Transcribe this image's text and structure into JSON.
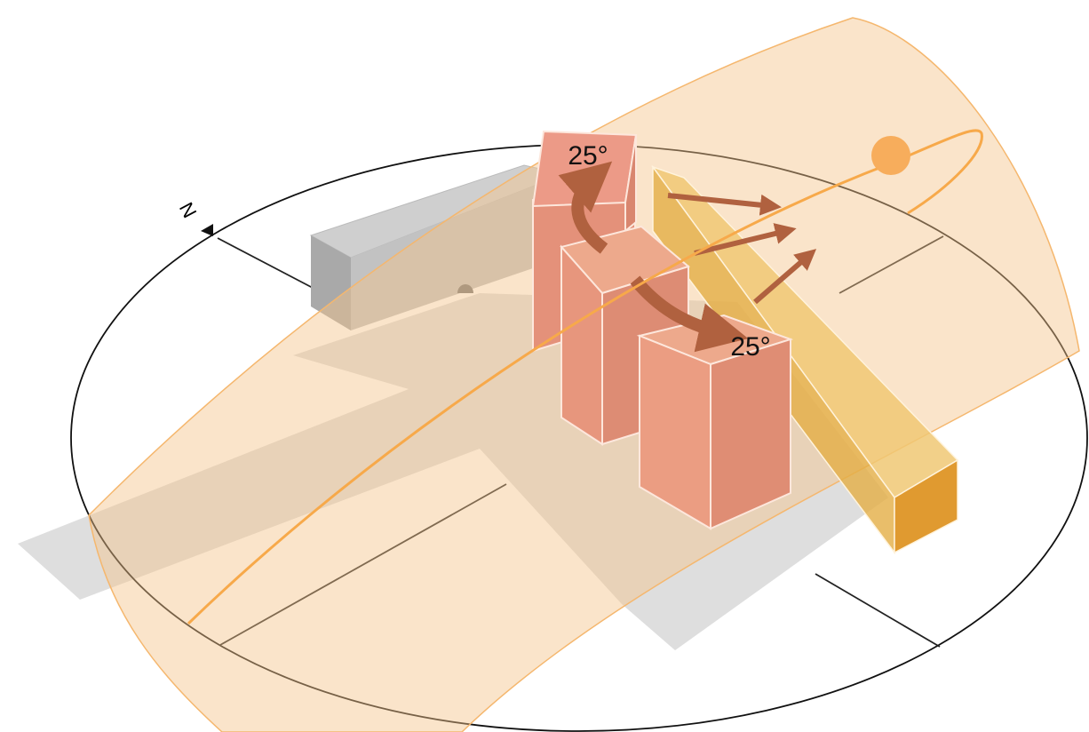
{
  "labels": {
    "north": "N",
    "rotation_top": "25°",
    "rotation_bottom": "25°"
  }
}
